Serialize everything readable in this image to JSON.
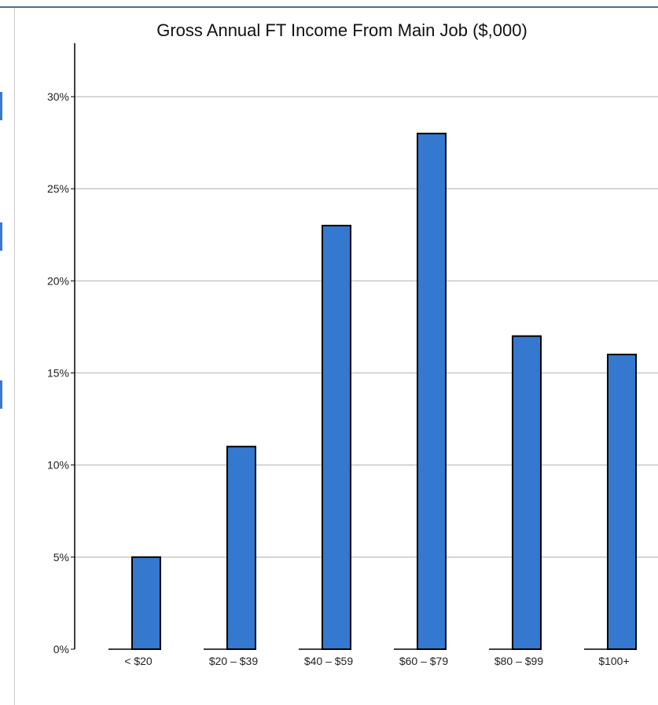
{
  "chart_data": {
    "type": "bar",
    "title": "Gross Annual FT Income From Main Job ($,000)",
    "xlabel": "",
    "ylabel": "",
    "categories": [
      "< $20",
      "$20 – $39",
      "$40 – $59",
      "$60 – $79",
      "$80 – $99",
      "$100+"
    ],
    "values": [
      5,
      11,
      23,
      28,
      17,
      16
    ],
    "value_format": "percent",
    "ylim": [
      0,
      30
    ],
    "yticks": [
      0,
      5,
      10,
      15,
      20,
      25,
      30
    ],
    "ytick_labels": [
      "0%",
      "5%",
      "10%",
      "15%",
      "20%",
      "25%",
      "30%"
    ],
    "grid": "horizontal",
    "legend": "none",
    "bar_color": "#3578cf",
    "bar_edge_color": "#000000"
  }
}
